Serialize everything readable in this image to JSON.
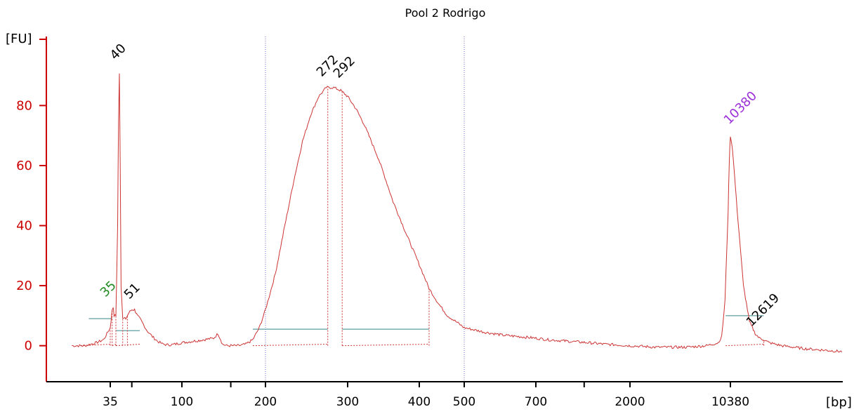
{
  "chart_data": {
    "type": "line",
    "title": "Pool 2 Rodrigo",
    "ylabel": "[FU]",
    "xlabel": "[bp]",
    "ylim": [
      -12,
      103
    ],
    "y_ticks": [
      0,
      20,
      40,
      60,
      80
    ],
    "x_ticks": [
      "35",
      "100",
      "200",
      "300",
      "400",
      "500",
      "700",
      "2000",
      "10380"
    ],
    "x_ticks_extra_unlabeled": 3,
    "markers_bp": [
      200,
      500
    ],
    "series": [
      {
        "x": [
          25,
          28,
          31,
          33,
          34,
          35,
          35.5,
          36,
          36.5,
          37,
          38,
          39,
          39.5,
          40,
          40.5,
          41,
          42,
          44,
          46,
          48,
          50,
          51,
          52,
          54,
          57,
          60,
          65,
          70,
          75,
          80,
          85,
          90,
          100,
          110,
          120,
          130,
          135,
          138,
          140,
          145,
          150,
          160,
          170,
          180,
          190,
          200,
          210,
          220,
          230,
          240,
          250,
          260,
          270,
          280,
          290,
          300,
          310,
          320,
          330,
          340,
          350,
          360,
          380,
          400,
          420,
          440,
          460,
          480,
          500,
          550,
          600,
          700,
          800,
          1000,
          1500,
          2000,
          3000,
          5000,
          7000,
          8500,
          9000,
          9500,
          10000,
          10200,
          10380,
          10500,
          10800,
          11200,
          11600,
          12000,
          12300,
          12619,
          13000,
          14000,
          16000,
          20000
        ],
        "y": [
          0,
          0,
          1,
          2,
          4,
          6,
          9,
          12,
          13,
          10,
          10,
          40,
          75,
          91,
          60,
          20,
          9,
          9,
          11,
          12,
          12,
          11,
          10,
          9,
          7,
          5,
          3,
          1.5,
          0.6,
          0.3,
          0.3,
          0.5,
          1,
          1.5,
          2,
          2.5,
          4,
          2,
          0.5,
          0,
          0,
          0,
          0.5,
          2,
          6,
          12,
          24,
          40,
          55,
          68,
          77,
          83,
          86,
          86,
          85,
          83,
          79,
          74,
          68,
          62,
          55,
          48,
          37,
          27,
          19,
          14,
          10,
          8,
          6,
          4.5,
          3.5,
          2.5,
          2,
          1.5,
          0.5,
          0,
          -0.5,
          -0.5,
          0,
          1,
          3,
          15,
          45,
          62,
          70,
          66,
          45,
          20,
          8,
          4,
          2.5,
          2,
          1,
          0,
          -1,
          -2
        ]
      }
    ],
    "peaks": [
      {
        "label": "35",
        "bp": 35,
        "color": "#228b22"
      },
      {
        "label": "40",
        "bp": 40,
        "color": "#000000"
      },
      {
        "label": "51",
        "bp": 51,
        "color": "#000000"
      },
      {
        "label": "272",
        "bp": 272,
        "color": "#000000"
      },
      {
        "label": "292",
        "bp": 292,
        "color": "#000000"
      },
      {
        "label": "10380",
        "bp": 10380,
        "color": "#9b30d9"
      },
      {
        "label": "12619",
        "bp": 12619,
        "color": "#000000"
      }
    ],
    "regions": [
      {
        "from": 29,
        "to": 36,
        "level": 9
      },
      {
        "from": 38,
        "to": 54,
        "level": 5
      },
      {
        "from": 180,
        "to": 272,
        "level": 5.5
      },
      {
        "from": 292,
        "to": 420,
        "level": 5.5
      },
      {
        "from": 9600,
        "to": 12600,
        "level": 10
      }
    ],
    "colors": {
      "axis": "#cc0000",
      "trace": "#cc3333",
      "region": "#5f9ea0",
      "marker": "#6a6acd",
      "tick_text": "#000000"
    }
  }
}
